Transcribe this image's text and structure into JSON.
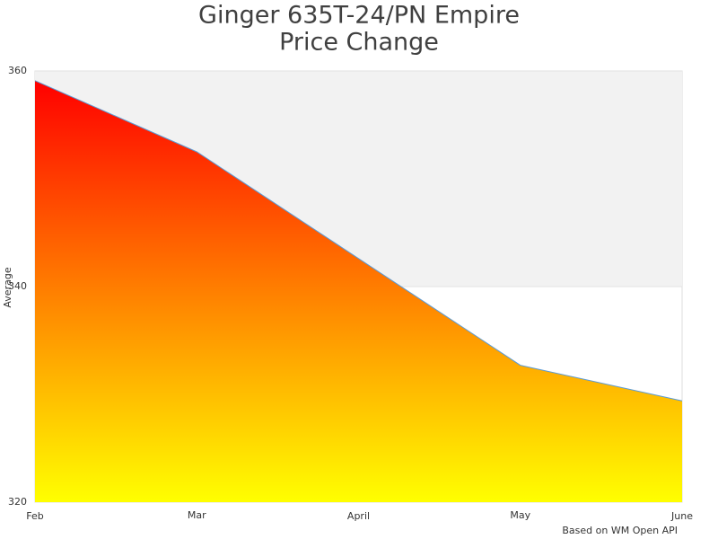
{
  "chart_data": {
    "type": "area",
    "title": [
      "Ginger 635T-24/PN Empire",
      "Price Change"
    ],
    "y_label": "Average",
    "credit": "Based on WM Open API",
    "categories": [
      "Feb",
      "Mar",
      "April",
      "May",
      "June"
    ],
    "series": [
      {
        "name": "Average",
        "color": "#5b9bd5",
        "values": [
          359.1,
          352.5,
          342.6,
          332.7,
          329.4
        ]
      }
    ],
    "gradient": [
      "#ff0000",
      "#ffff00"
    ],
    "band_color": "#f2f2f2",
    "ylim": [
      320,
      360
    ],
    "yticks": [
      320,
      340,
      360
    ]
  }
}
